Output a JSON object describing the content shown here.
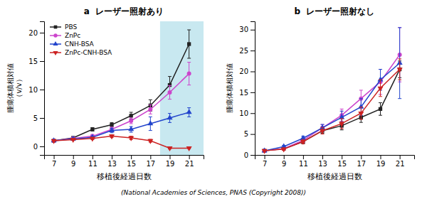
{
  "chart_data": [
    {
      "type": "line",
      "title": "a  レーザー照射あり",
      "xlabel": "移植後経過日数",
      "ylabel": [
        "腫瘍体積相対値",
        "（v/v）"
      ],
      "x": [
        7,
        9,
        11,
        13,
        15,
        17,
        19,
        21
      ],
      "series": [
        {
          "name": "PBS",
          "color": "#222222",
          "marker": "square",
          "values": [
            1.0,
            1.5,
            3.0,
            3.8,
            5.4,
            7.2,
            10.8,
            18.0
          ],
          "yerr": [
            0.15,
            0.2,
            0.3,
            0.4,
            0.6,
            1.0,
            1.5,
            2.5
          ]
        },
        {
          "name": "ZnPc",
          "color": "#cc44cc",
          "marker": "circle",
          "values": [
            1.0,
            1.4,
            1.8,
            3.0,
            4.5,
            6.5,
            9.5,
            12.8
          ],
          "yerr": [
            0.1,
            0.2,
            0.3,
            0.4,
            0.5,
            0.8,
            1.2,
            2.0
          ]
        },
        {
          "name": "CNH-BSA",
          "color": "#2244cc",
          "marker": "triangle-up",
          "values": [
            1.0,
            1.3,
            1.6,
            2.8,
            3.0,
            4.0,
            5.0,
            6.0
          ],
          "yerr": [
            0.1,
            0.2,
            0.2,
            0.4,
            0.5,
            1.2,
            0.8,
            0.8
          ]
        },
        {
          "name": "ZnPc-CNH-BSA",
          "color": "#cc2222",
          "marker": "triangle-down",
          "values": [
            1.0,
            1.2,
            1.4,
            1.8,
            1.5,
            1.0,
            -0.3,
            -0.3
          ],
          "yerr": [
            0.1,
            0.15,
            0.2,
            0.25,
            0.3,
            0.25,
            0.15,
            0.1
          ]
        }
      ],
      "xlim": [
        6,
        22.5
      ],
      "ylim": [
        -1.5,
        22
      ],
      "xticks": [
        7,
        9,
        11,
        13,
        15,
        17,
        19,
        21
      ],
      "yticks": [
        0,
        5,
        10,
        15,
        20
      ],
      "grid": false,
      "legend": "upper left",
      "shaded_region": {
        "x": [
          18.0,
          22.5
        ],
        "color": "#c8e8f0"
      },
      "annotation": "(National Academies of Sciences, PNAS (Copyright 2008))"
    },
    {
      "type": "line",
      "title": "b  レーザー照射なし",
      "xlabel": "移植後経過日数",
      "ylabel": "腫瘍体積相対値",
      "x": [
        7,
        9,
        11,
        13,
        15,
        17,
        19,
        21
      ],
      "series": [
        {
          "name": "PBS",
          "color": "#222222",
          "marker": "square",
          "values": [
            1.0,
            1.5,
            3.2,
            5.8,
            7.0,
            9.0,
            11.0,
            20.5
          ],
          "yerr": [
            0.1,
            0.3,
            0.5,
            0.6,
            1.0,
            1.2,
            1.5,
            2.0
          ]
        },
        {
          "name": "ZnPc",
          "color": "#cc44cc",
          "marker": "circle",
          "values": [
            1.0,
            1.5,
            3.5,
            6.5,
            9.5,
            13.5,
            17.5,
            24.0
          ],
          "yerr": [
            0.1,
            0.3,
            0.5,
            0.8,
            1.5,
            2.0,
            3.0,
            6.5
          ]
        },
        {
          "name": "CNH-BSA",
          "color": "#2244cc",
          "marker": "triangle-up",
          "values": [
            1.0,
            2.0,
            4.0,
            6.5,
            9.0,
            11.5,
            18.0,
            22.0
          ],
          "yerr": [
            0.1,
            0.3,
            0.5,
            0.8,
            1.5,
            2.0,
            2.5,
            8.5
          ]
        },
        {
          "name": "ZnPc-CNH-BSA",
          "color": "#cc2222",
          "marker": "triangle-down",
          "values": [
            1.0,
            1.4,
            3.2,
            5.8,
            7.5,
            10.0,
            16.0,
            20.5
          ],
          "yerr": [
            0.1,
            0.3,
            0.5,
            0.8,
            1.2,
            1.5,
            2.0,
            2.5
          ]
        }
      ],
      "xlim": [
        6,
        22.5
      ],
      "ylim": [
        0,
        32
      ],
      "xticks": [
        7,
        9,
        11,
        13,
        15,
        17,
        19,
        21
      ],
      "yticks": [
        0,
        5,
        10,
        15,
        20,
        25,
        30
      ],
      "grid": false,
      "legend": false
    }
  ]
}
